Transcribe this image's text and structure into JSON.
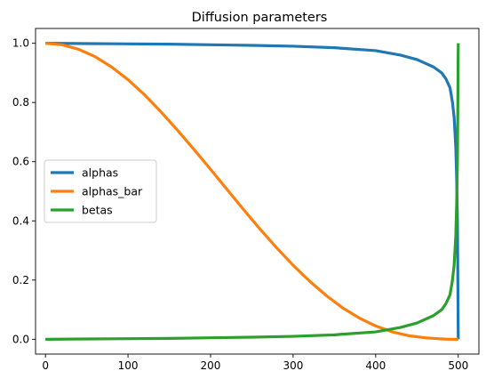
{
  "chart_data": {
    "type": "line",
    "title": "Diffusion parameters",
    "xlabel": "",
    "ylabel": "",
    "xlim": [
      -12,
      525
    ],
    "ylim": [
      -0.05,
      1.05
    ],
    "xticks": [
      0,
      100,
      200,
      300,
      400,
      500
    ],
    "yticks": [
      0.0,
      0.2,
      0.4,
      0.6,
      0.8,
      1.0
    ],
    "xtick_labels": [
      "0",
      "100",
      "200",
      "300",
      "400",
      "500"
    ],
    "ytick_labels": [
      "0.0",
      "0.2",
      "0.4",
      "0.6",
      "0.8",
      "1.0"
    ],
    "grid": false,
    "legend": "center-left",
    "series": [
      {
        "name": "alphas",
        "color": "#1f77b4",
        "x": [
          0,
          50,
          100,
          150,
          200,
          250,
          300,
          350,
          400,
          430,
          450,
          470,
          480,
          485,
          490,
          493,
          495,
          497,
          498,
          499,
          500
        ],
        "y": [
          1.0,
          0.999,
          0.998,
          0.997,
          0.995,
          0.993,
          0.99,
          0.985,
          0.975,
          0.96,
          0.945,
          0.92,
          0.9,
          0.88,
          0.85,
          0.8,
          0.75,
          0.65,
          0.55,
          0.4,
          0.0
        ]
      },
      {
        "name": "alphas_bar",
        "color": "#ff7f0e",
        "x": [
          0,
          20,
          40,
          60,
          80,
          100,
          120,
          140,
          160,
          180,
          200,
          220,
          240,
          260,
          280,
          300,
          320,
          340,
          360,
          380,
          400,
          420,
          440,
          460,
          480,
          490,
          500
        ],
        "y": [
          1.0,
          0.995,
          0.98,
          0.955,
          0.92,
          0.877,
          0.826,
          0.768,
          0.706,
          0.641,
          0.574,
          0.506,
          0.438,
          0.372,
          0.309,
          0.25,
          0.196,
          0.148,
          0.106,
          0.072,
          0.045,
          0.025,
          0.012,
          0.005,
          0.001,
          0.0,
          0.0
        ]
      },
      {
        "name": "betas",
        "color": "#2ca02c",
        "x": [
          0,
          50,
          100,
          150,
          200,
          250,
          300,
          350,
          400,
          430,
          450,
          470,
          480,
          485,
          490,
          493,
          495,
          497,
          498,
          499,
          500
        ],
        "y": [
          0.0,
          0.001,
          0.002,
          0.003,
          0.005,
          0.007,
          0.01,
          0.015,
          0.025,
          0.04,
          0.055,
          0.08,
          0.1,
          0.12,
          0.15,
          0.2,
          0.25,
          0.35,
          0.45,
          0.6,
          1.0
        ]
      }
    ]
  }
}
